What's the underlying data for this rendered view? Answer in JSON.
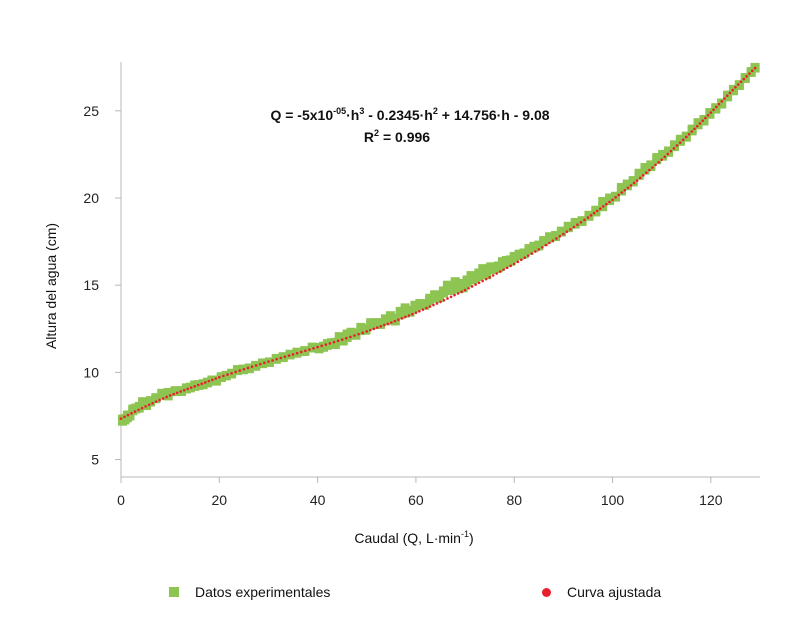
{
  "colors": {
    "experimental": "#8dc452",
    "fit": "#e8202a",
    "axis": "#b8b8b8"
  },
  "chart_data": {
    "type": "scatter",
    "xlabel": "Caudal (Q, L·min",
    "xlabel_sup": "-1",
    "xlabel_end": ")",
    "ylabel": "Altura del agua (cm)",
    "xlim": [
      0,
      130
    ],
    "ylim": [
      4,
      27.8
    ],
    "xticks": [
      "0",
      "20",
      "40",
      "60",
      "80",
      "100",
      "120"
    ],
    "yticks": [
      "5",
      "10",
      "15",
      "20",
      "25"
    ],
    "equation": {
      "line1": [
        "Q = -5x10",
        "-05",
        "·h",
        "3",
        " - 0.2345·h",
        "2",
        " + 14.756·h - 9.08"
      ],
      "line2": [
        "R",
        "2",
        " = 0.996"
      ]
    },
    "legend": {
      "experimental": "Datos experimentales",
      "fit": "Curva ajustada"
    },
    "series": [
      {
        "name": "Datos experimentales",
        "marker": "square",
        "x": [
          0.3,
          0.8,
          1.3,
          1.8,
          2.4,
          3.0,
          3.7,
          4.4,
          5.2,
          6.0,
          7.1,
          8.3,
          9.6,
          11.0,
          12.3,
          13.3,
          14.1,
          15.0,
          15.8,
          16.7,
          17.6,
          18.5,
          19.4,
          20.4,
          21.4,
          22.5,
          23.7,
          24.9,
          26.1,
          27.4,
          28.8,
          30.2,
          31.6,
          33.0,
          34.4,
          35.8,
          37.4,
          38.9,
          40.3,
          41.2,
          42.0,
          42.8,
          43.6,
          44.4,
          45.2,
          46.0,
          46.8,
          47.8,
          48.8,
          49.8,
          50.8,
          51.8,
          52.8,
          53.8,
          54.8,
          55.8,
          56.8,
          57.8,
          58.8,
          59.8,
          60.8,
          61.8,
          62.8,
          63.8,
          64.8,
          65.6,
          66.4,
          67.2,
          68.0,
          68.8,
          69.6,
          70.4,
          71.2,
          72.0,
          72.8,
          73.6,
          74.4,
          75.2,
          76.0,
          76.8,
          77.6,
          78.4,
          79.2,
          80.0,
          81.0,
          82.0,
          83.0,
          84.0,
          85.0,
          86.0,
          87.2,
          88.4,
          89.6,
          91.0,
          92.4,
          93.8,
          95.2,
          96.6,
          98.0,
          99.4,
          100.6,
          101.8,
          103.0,
          104.2,
          105.4,
          106.6,
          107.8,
          109.0,
          110.2,
          111.4,
          112.6,
          113.8,
          115.0,
          116.2,
          117.4,
          118.6,
          119.8,
          121.0,
          122.2,
          123.4,
          124.6,
          125.8,
          127.0,
          128.2,
          129.0
        ],
        "y": [
          7.2,
          7.35,
          7.4,
          7.55,
          7.8,
          7.9,
          8.05,
          8.2,
          8.1,
          8.3,
          8.55,
          8.7,
          8.65,
          8.9,
          8.95,
          9.05,
          9.15,
          9.2,
          9.25,
          9.35,
          9.4,
          9.5,
          9.55,
          9.7,
          9.8,
          9.95,
          10.1,
          10.15,
          10.25,
          10.35,
          10.5,
          10.6,
          10.75,
          10.9,
          11.0,
          11.1,
          11.25,
          11.4,
          11.35,
          11.5,
          11.55,
          11.7,
          11.6,
          11.8,
          11.9,
          12.0,
          12.15,
          12.25,
          12.4,
          12.5,
          12.7,
          12.75,
          12.85,
          12.95,
          13.0,
          13.1,
          13.3,
          13.4,
          13.55,
          13.7,
          13.85,
          13.95,
          14.1,
          14.25,
          14.4,
          14.55,
          14.7,
          14.85,
          14.95,
          14.8,
          15.05,
          15.15,
          15.3,
          15.45,
          15.5,
          15.65,
          15.8,
          15.9,
          15.95,
          16.1,
          16.2,
          16.3,
          16.45,
          16.55,
          16.7,
          16.85,
          17.0,
          17.15,
          17.3,
          17.5,
          17.7,
          17.85,
          18.05,
          18.3,
          18.5,
          18.7,
          18.95,
          19.2,
          19.5,
          19.85,
          20.1,
          20.4,
          20.7,
          21.0,
          21.3,
          21.6,
          21.9,
          22.2,
          22.4,
          22.7,
          22.95,
          23.25,
          23.55,
          23.85,
          24.2,
          24.5,
          24.8,
          25.1,
          25.45,
          25.8,
          26.15,
          26.5,
          26.85,
          27.2,
          27.45
        ],
        "y_scatter": [
          0.12,
          -0.08,
          0.15,
          -0.05,
          0.1,
          0.05,
          -0.1,
          0.12,
          0.05,
          0.08,
          -0.06,
          0.1,
          0.2,
          0.05,
          -0.05,
          0.06,
          -0.04,
          0.08,
          0.05,
          -0.06,
          0.04,
          0.06,
          -0.05,
          0.05,
          0.03,
          -0.04,
          0.06,
          0.04,
          -0.04,
          0.05,
          0.04,
          -0.03,
          0.05,
          -0.05,
          0.04,
          0.06,
          -0.05,
          0.05,
          0.08,
          -0.06,
          0.1,
          -0.08,
          0.12,
          0.25,
          -0.1,
          0.2,
          0.15,
          -0.12,
          0.18,
          -0.08,
          0.15,
          0.1,
          -0.1,
          0.12,
          0.25,
          -0.15,
          0.2,
          0.3,
          -0.1,
          0.15,
          0.1,
          -0.1,
          0.15,
          0.2,
          -0.1,
          0.12,
          0.3,
          -0.15,
          0.25,
          0.3,
          -0.2,
          0.15,
          0.25,
          -0.1,
          0.2,
          0.3,
          -0.2,
          0.15,
          0.1,
          -0.1,
          0.15,
          0.12,
          -0.08,
          0.1,
          0.08,
          -0.06,
          0.1,
          0.08,
          -0.05,
          0.06,
          0.08,
          -0.06,
          0.05,
          0.08,
          0.1,
          -0.05,
          0.06,
          0.1,
          0.3,
          0.15,
          -0.05,
          0.2,
          0.1,
          -0.08,
          0.12,
          0.15,
          -0.1,
          0.12,
          0.1,
          -0.08,
          0.1,
          0.12,
          -0.06,
          0.1,
          0.12,
          -0.08,
          0.1,
          0.08,
          -0.06,
          0.1,
          0.08,
          -0.05,
          0.06,
          0.05,
          0.04
        ]
      },
      {
        "name": "Curva ajustada",
        "marker": "dotted-line",
        "x": [
          0,
          5,
          10,
          15,
          20,
          25,
          30,
          35,
          40,
          45,
          50,
          55,
          60,
          65,
          70,
          75,
          80,
          85,
          90,
          95,
          100,
          105,
          110,
          115,
          120,
          125,
          129
        ],
        "y": [
          7.35,
          8.05,
          8.68,
          9.2,
          9.72,
          10.18,
          10.62,
          11.03,
          11.45,
          11.88,
          12.35,
          12.86,
          13.42,
          14.04,
          14.72,
          15.45,
          16.22,
          17.05,
          17.93,
          18.88,
          19.9,
          21.0,
          22.2,
          23.5,
          24.9,
          26.35,
          27.45
        ]
      }
    ]
  }
}
